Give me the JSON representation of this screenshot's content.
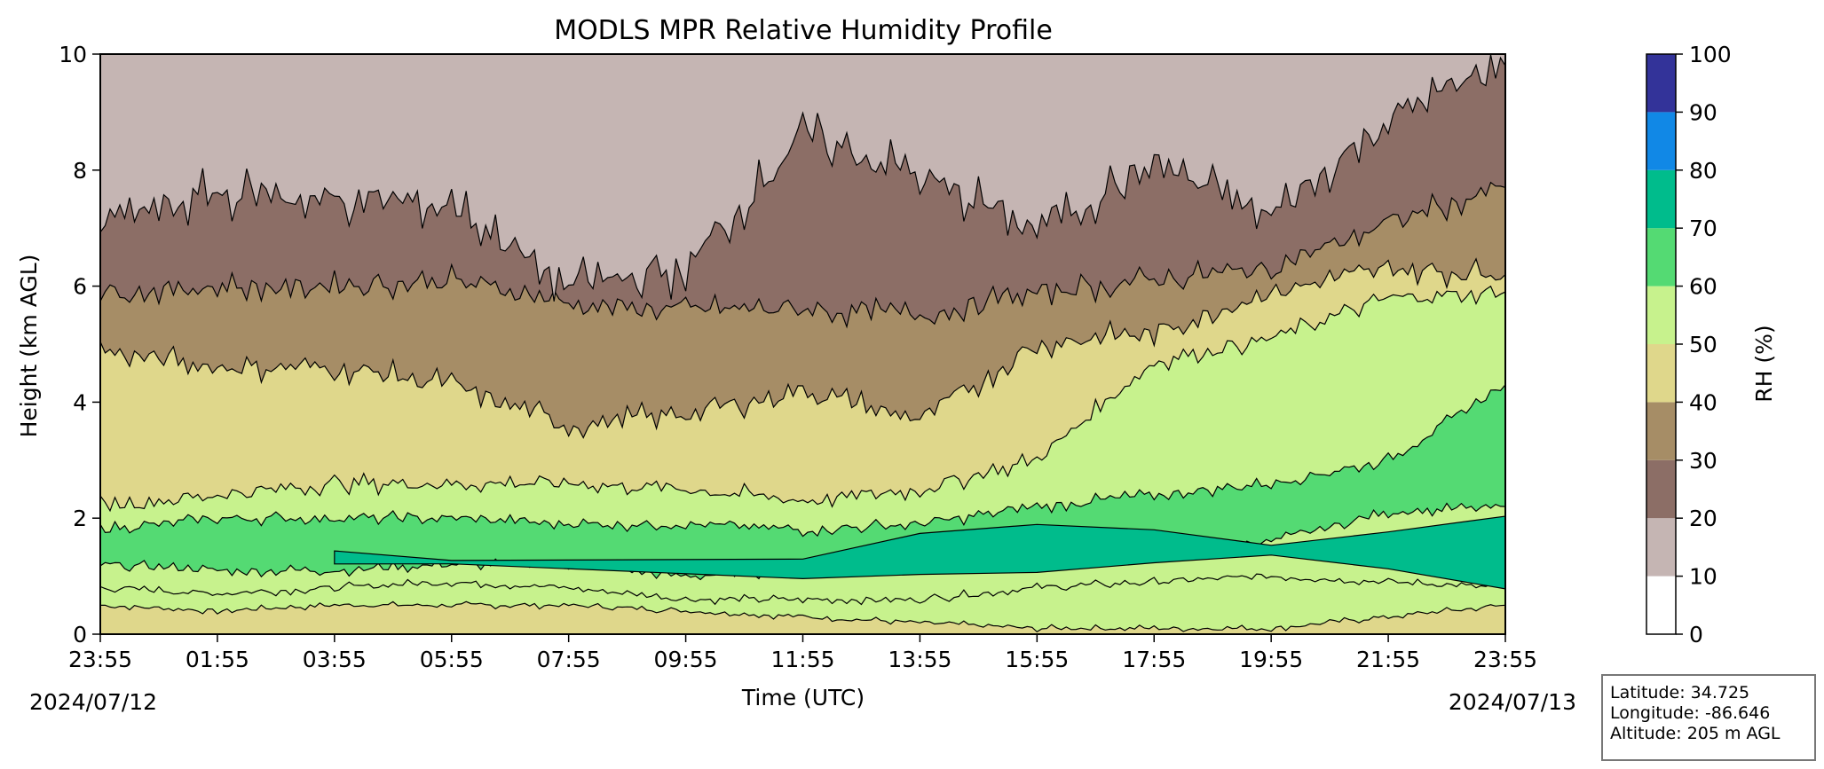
{
  "chart_data": {
    "type": "heatmap",
    "subtype": "filled-contour",
    "title": "MODLS MPR Relative Humidity Profile",
    "xlabel": "Time (UTC)",
    "ylabel": "Height (km AGL)",
    "x_ticks": [
      "23:55",
      "01:55",
      "03:55",
      "05:55",
      "07:55",
      "09:55",
      "11:55",
      "13:55",
      "15:55",
      "17:55",
      "19:55",
      "21:55",
      "23:55"
    ],
    "x_dates": {
      "start": "2024/07/12",
      "end": "2024/07/13"
    },
    "y_ticks": [
      0,
      2,
      4,
      6,
      8,
      10
    ],
    "ylim": [
      0,
      10
    ],
    "colorbar": {
      "label": "RH (%)",
      "levels": [
        0,
        10,
        20,
        30,
        40,
        50,
        60,
        70,
        80,
        90,
        100
      ],
      "colors": [
        "#ffffff",
        "#c5b5b3",
        "#8c6e66",
        "#a68d66",
        "#dfd78b",
        "#c7f28d",
        "#54da73",
        "#00bc8c",
        "#1188e6",
        "#333399"
      ]
    },
    "contour_bands_km": {
      "description": "approximate contour boundary heights (km) at each x tick",
      "b10_20": [
        7.1,
        7.6,
        7.5,
        7.4,
        6.0,
        6.3,
        8.6,
        7.9,
        7.0,
        8.1,
        7.2,
        8.9,
        9.8
      ],
      "b20_30": [
        5.9,
        6.0,
        6.0,
        6.1,
        5.7,
        5.6,
        5.6,
        5.5,
        5.9,
        6.1,
        6.3,
        7.1,
        7.7
      ],
      "b30_40": [
        4.9,
        4.6,
        4.6,
        4.3,
        3.6,
        3.8,
        4.2,
        3.7,
        5.0,
        5.2,
        5.9,
        6.3,
        6.2
      ],
      "b40_50": [
        2.2,
        2.4,
        2.6,
        2.6,
        2.6,
        2.5,
        2.3,
        2.5,
        3.0,
        4.7,
        5.1,
        5.8,
        5.9
      ],
      "b50_60": [
        1.8,
        2.0,
        2.0,
        2.0,
        1.9,
        1.9,
        1.8,
        1.9,
        2.2,
        2.4,
        2.6,
        3.0,
        4.3
      ],
      "b60_70": [
        1.2,
        1.1,
        1.1,
        1.2,
        1.2,
        1.0,
        1.1,
        1.2,
        1.3,
        1.5,
        1.6,
        2.1,
        2.2
      ],
      "b70_80": [
        null,
        null,
        1.4,
        1.3,
        null,
        null,
        1.3,
        1.7,
        1.9,
        1.8,
        1.5,
        1.8,
        2.0
      ],
      "b70_80_low": [
        null,
        null,
        1.2,
        1.2,
        null,
        null,
        1.0,
        1.0,
        1.1,
        1.2,
        1.4,
        1.1,
        0.8
      ],
      "b50_lower": [
        0.8,
        0.7,
        0.8,
        0.9,
        0.8,
        0.6,
        0.6,
        0.6,
        0.8,
        0.9,
        1.0,
        0.9,
        0.8
      ],
      "b40_lower": [
        0.5,
        0.4,
        0.5,
        0.5,
        0.5,
        0.4,
        0.3,
        0.2,
        0.1,
        0.1,
        0.1,
        0.3,
        0.5
      ]
    }
  },
  "info": {
    "latitude": "Latitude: 34.725",
    "longitude": "Longitude: -86.646",
    "altitude": "Altitude: 205 m AGL"
  }
}
